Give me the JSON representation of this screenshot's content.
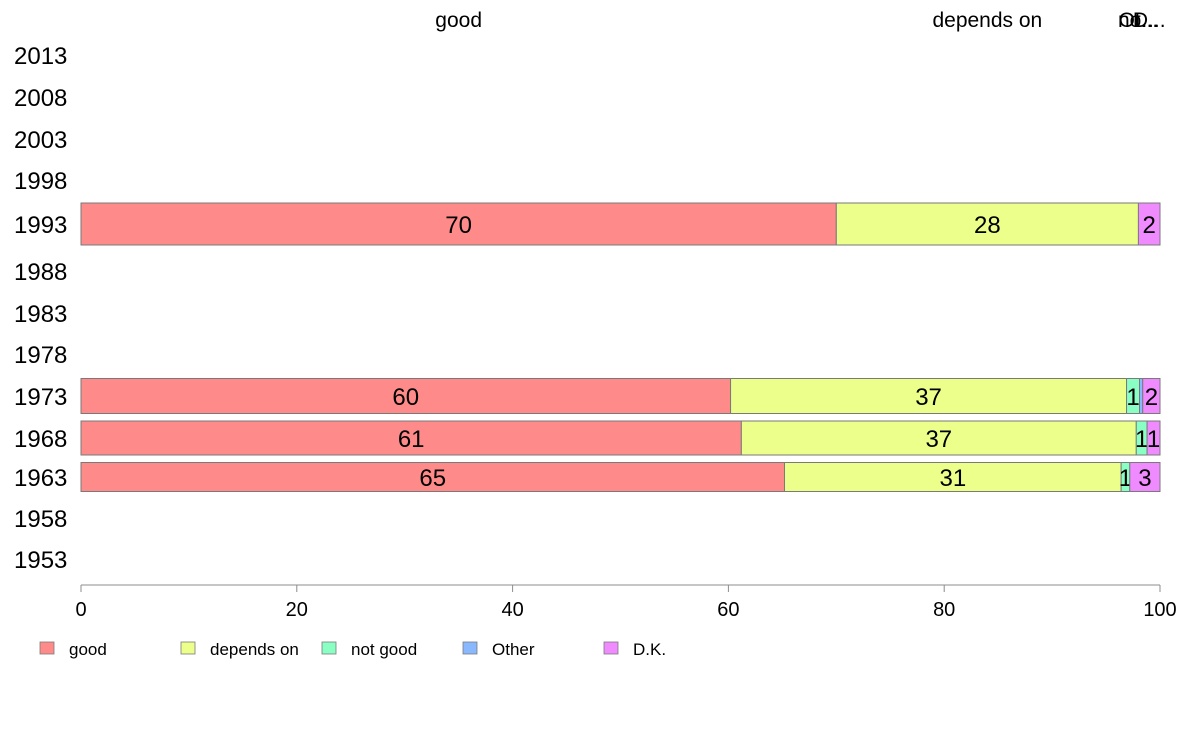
{
  "chart_data": {
    "type": "bar",
    "orientation": "horizontal",
    "stacked": true,
    "title": "",
    "xlabel": "",
    "ylabel": "",
    "xlim": [
      0,
      100
    ],
    "x_ticks": [
      0,
      20,
      40,
      60,
      80,
      100
    ],
    "grid": false,
    "legend_position": "bottom-left",
    "top_labels": [
      "good",
      "depends on",
      "not good",
      "Other",
      "D.K."
    ],
    "top_label_texts": [
      "good",
      "depends on",
      "no...",
      "Ot...",
      "D..."
    ],
    "categories": [
      "2013",
      "2008",
      "2003",
      "1998",
      "1993",
      "1988",
      "1983",
      "1978",
      "1973",
      "1968",
      "1963",
      "1958",
      "1953"
    ],
    "series": [
      {
        "name": "good",
        "color": "#ff8a8a",
        "values": [
          null,
          null,
          null,
          null,
          70,
          null,
          null,
          null,
          60.2,
          61.2,
          65.2,
          null,
          null
        ],
        "labels": [
          "",
          "",
          "",
          "",
          "70",
          "",
          "",
          "",
          "60",
          "61",
          "65",
          "",
          ""
        ]
      },
      {
        "name": "depends on",
        "color": "#ebff8a",
        "values": [
          null,
          null,
          null,
          null,
          28,
          null,
          null,
          null,
          36.7,
          36.6,
          31.2,
          null,
          null
        ],
        "labels": [
          "",
          "",
          "",
          "",
          "28",
          "",
          "",
          "",
          "37",
          "37",
          "31",
          "",
          ""
        ]
      },
      {
        "name": "not good",
        "color": "#8affc4",
        "values": [
          null,
          null,
          null,
          null,
          0,
          null,
          null,
          null,
          1.2,
          1.0,
          0.8,
          null,
          null
        ],
        "labels": [
          "",
          "",
          "",
          "",
          "",
          "",
          "",
          "",
          "1",
          "1",
          "1",
          "",
          ""
        ]
      },
      {
        "name": "Other",
        "color": "#8ab8ff",
        "values": [
          null,
          null,
          null,
          null,
          0,
          null,
          null,
          null,
          0.3,
          0,
          0,
          null,
          null
        ],
        "labels": [
          "",
          "",
          "",
          "",
          "",
          "",
          "",
          "",
          "",
          "",
          "",
          "",
          ""
        ]
      },
      {
        "name": "D.K.",
        "color": "#f08aff",
        "values": [
          null,
          null,
          null,
          null,
          2,
          null,
          null,
          null,
          1.6,
          1.2,
          2.8,
          null,
          null
        ],
        "labels": [
          "",
          "",
          "",
          "",
          "2",
          "",
          "",
          "",
          "2",
          "1",
          "3",
          "",
          ""
        ]
      }
    ]
  }
}
